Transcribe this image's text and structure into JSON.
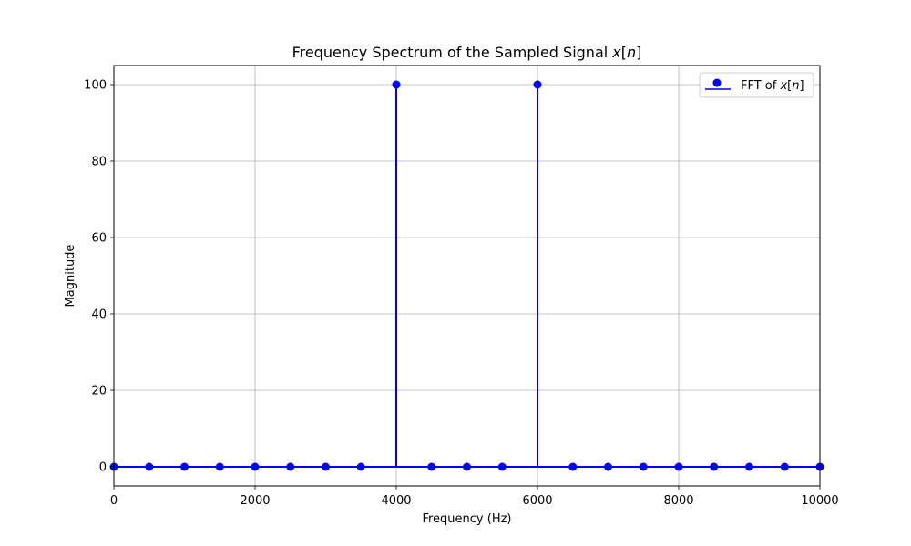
{
  "chart_data": {
    "type": "stem",
    "title": "Frequency Spectrum of the Sampled Signal x[n]",
    "xlabel": "Frequency (Hz)",
    "ylabel": "Magnitude",
    "xlim": [
      0,
      10000
    ],
    "ylim": [
      -5,
      105
    ],
    "xticks": [
      0,
      2000,
      4000,
      6000,
      8000,
      10000
    ],
    "yticks": [
      0,
      20,
      40,
      60,
      80,
      100
    ],
    "grid": true,
    "legend_position": "top-right",
    "series": [
      {
        "name": "FFT of x[n]",
        "color": "#0000ff",
        "x": [
          0,
          500,
          1000,
          1500,
          2000,
          2500,
          3000,
          3500,
          4000,
          4500,
          5000,
          5500,
          6000,
          6500,
          7000,
          7500,
          8000,
          8500,
          9000,
          9500,
          10000
        ],
        "y": [
          0,
          0,
          0,
          0,
          0,
          0,
          0,
          0,
          100,
          0,
          0,
          0,
          100,
          0,
          0,
          0,
          0,
          0,
          0,
          0,
          0
        ]
      }
    ]
  }
}
